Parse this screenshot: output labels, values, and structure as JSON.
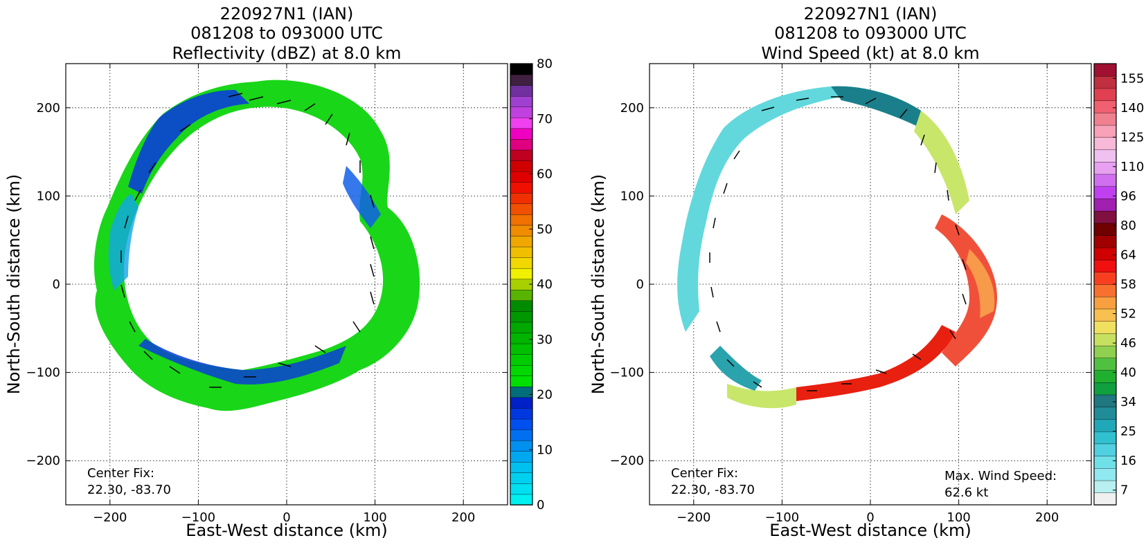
{
  "panels": [
    {
      "title_lines": [
        "220927N1 (IAN)",
        "081208 to 093000 UTC",
        "Reflectivity (dBZ) at 8.0 km"
      ],
      "xlabel": "East-West distance (km)",
      "ylabel": "North-South distance (km)",
      "annotation_left": [
        "Center Fix:",
        "22.30, -83.70"
      ],
      "annotation_right": [],
      "colorbar_ticks": [
        "0",
        "10",
        "20",
        "30",
        "40",
        "50",
        "60",
        "70",
        "80"
      ],
      "colors": {
        "ring": [
          "#17d617",
          "#19c919",
          "#0b3fd6",
          "#1060e8",
          "#12a6e8",
          "#0f7c86",
          "#1ad61a"
        ]
      }
    },
    {
      "title_lines": [
        "220927N1 (IAN)",
        "081208 to 093000 UTC",
        "Wind Speed (kt) at 8.0 km"
      ],
      "xlabel": "East-West distance (km)",
      "ylabel": "North-South distance (km)",
      "annotation_left": [
        "Center Fix:",
        "22.30, -83.70"
      ],
      "annotation_right": [
        "Max. Wind Speed:",
        "62.6 kt"
      ],
      "colorbar_ticks": [
        "7",
        "16",
        "25",
        "34",
        "40",
        "46",
        "52",
        "58",
        "64",
        "80",
        "96",
        "110",
        "125",
        "140",
        "155"
      ],
      "colors": {
        "ring": [
          "#62d8dc",
          "#2aa3ad",
          "#1a7f8a",
          "#c8e66a",
          "#f0503a",
          "#e82010",
          "#f79a4a"
        ]
      }
    }
  ],
  "chart_data": [
    {
      "type": "heatmap",
      "variable": "Reflectivity (dBZ)",
      "altitude_km": 8.0,
      "xlim": [
        -250,
        250
      ],
      "ylim": [
        -250,
        250
      ],
      "xticks": [
        -200,
        -100,
        0,
        100,
        200
      ],
      "yticks": [
        -200,
        -100,
        0,
        100,
        200
      ],
      "grid": true,
      "colorbar": {
        "min": 0,
        "max": 80,
        "levels": 32,
        "colors": [
          "#00f0f0",
          "#00e0f0",
          "#00d0f0",
          "#00c0f0",
          "#00a8f0",
          "#0090f0",
          "#0070f0",
          "#0050f0",
          "#0038e0",
          "#0020c8",
          "#006d7a",
          "#00e000",
          "#00d800",
          "#00cc00",
          "#00c000",
          "#00b400",
          "#00a800",
          "#009800",
          "#008c00",
          "#58b400",
          "#a8d000",
          "#f0f000",
          "#f0d800",
          "#f0c000",
          "#f0a800",
          "#f08c00",
          "#f07000",
          "#f05000",
          "#f03000",
          "#f01000",
          "#e00000",
          "#d00000",
          "#c00020",
          "#e00080",
          "#f000c0",
          "#f040f0",
          "#c040e0",
          "#a040d0",
          "#7030a0",
          "#402040",
          "#000000"
        ]
      }
    },
    {
      "type": "heatmap",
      "variable": "Wind Speed (kt)",
      "altitude_km": 8.0,
      "xlim": [
        -250,
        250
      ],
      "ylim": [
        -250,
        250
      ],
      "xticks": [
        -200,
        -100,
        0,
        100,
        200
      ],
      "yticks": [
        -200,
        -100,
        0,
        100,
        200
      ],
      "grid": true,
      "max_wind_kt": 62.6,
      "colorbar": {
        "min": 4,
        "max": 160,
        "levels": 30,
        "colors": [
          "#f0f0f0",
          "#b8f0f0",
          "#90e8f0",
          "#70e0e8",
          "#50d0e0",
          "#30c0d0",
          "#20a8b8",
          "#208c98",
          "#207880",
          "#10a040",
          "#20b030",
          "#50c040",
          "#90d050",
          "#c8e060",
          "#f0e060",
          "#f8c050",
          "#f8a040",
          "#f87030",
          "#f84020",
          "#f01010",
          "#d00000",
          "#a00000",
          "#700000",
          "#801040",
          "#a020b0",
          "#c040f0",
          "#d070f0",
          "#e8a0f0",
          "#f0c0f0",
          "#f8b8d8",
          "#f8a0b8",
          "#f08090",
          "#f06070",
          "#e04050",
          "#c03040",
          "#a01030"
        ]
      }
    }
  ]
}
